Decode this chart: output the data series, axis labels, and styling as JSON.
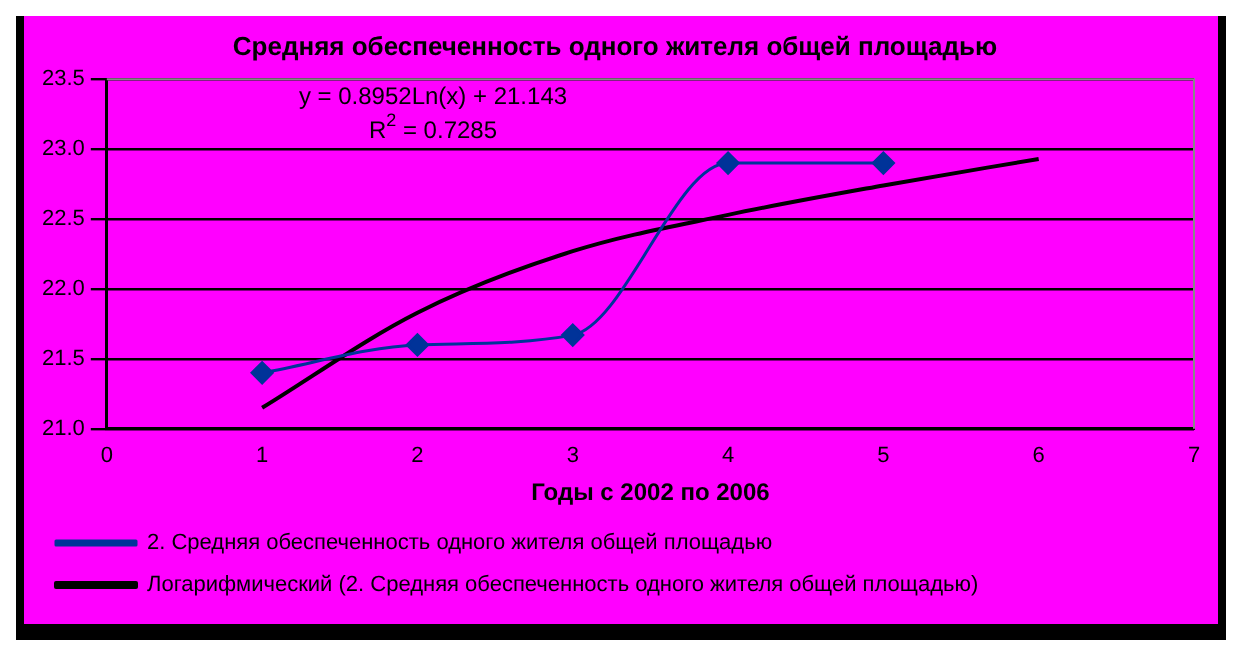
{
  "chart_data": {
    "type": "line",
    "title": "Средняя обеспеченность одного жителя общей площадью",
    "xlabel": "Годы с 2002 по 2006",
    "xlim": [
      0,
      7
    ],
    "xticks": [
      0,
      1,
      2,
      3,
      4,
      5,
      6,
      7
    ],
    "ylim": [
      21,
      23.5
    ],
    "yticks": [
      {
        "value": 21,
        "label": "21.0"
      },
      {
        "value": 21.5,
        "label": "21.5"
      },
      {
        "value": 22,
        "label": "22.0"
      },
      {
        "value": 22.5,
        "label": "22.5"
      },
      {
        "value": 23,
        "label": "23.0"
      },
      {
        "value": 23.5,
        "label": "23.5"
      }
    ],
    "grid": "y",
    "legend": "bottom",
    "annotations": [
      "y = 0.8952Ln(x) + 21.143",
      "R$^{2}$ = 0.7285"
    ],
    "series": [
      {
        "name": "2. Средняя обеспеченность одного жителя общей площадью",
        "color": "#003399",
        "x": [
          1,
          2,
          3,
          4,
          5
        ],
        "values": [
          21.4,
          21.6,
          21.67,
          22.9,
          22.9
        ],
        "marker": "diamond"
      },
      {
        "name": "Логарифмический (2. Средняя обеспеченность одного жителя общей площадью)",
        "type": "line",
        "color": "#000000",
        "x": [
          1,
          2,
          3,
          4,
          5,
          6
        ],
        "values": [
          21.15,
          21.83,
          22.27,
          22.53,
          22.74,
          22.93
        ],
        "marker": "none"
      }
    ]
  }
}
